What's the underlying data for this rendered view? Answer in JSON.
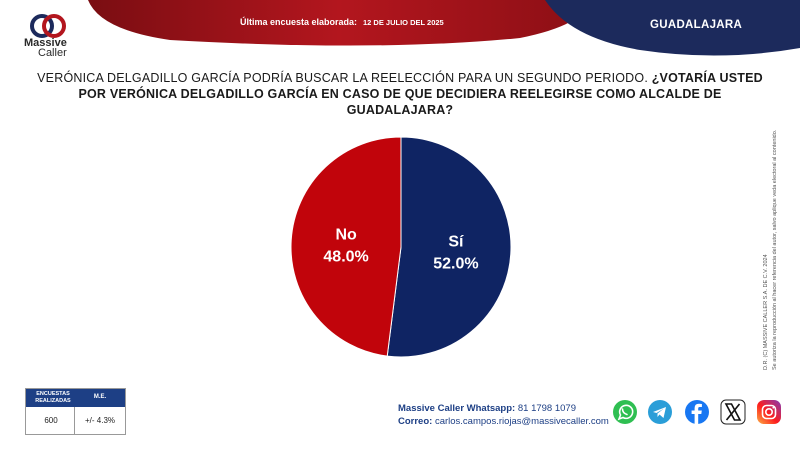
{
  "brand": {
    "name": "Massive",
    "sub": "Caller"
  },
  "header": {
    "date_label": "Última encuesta elaborada:",
    "date_value": "12 DE JULIO DEL 2025",
    "city": "GUADALAJARA",
    "colors": {
      "red": "#b3161e",
      "navy": "#1c2a5c"
    }
  },
  "question": {
    "line_regular": "VERÓNICA DELGADILLO GARCÍA PODRÍA BUSCAR LA REELECCIÓN PARA UN SEGUNDO PERIODO.",
    "line_bold": "¿VOTARÍA USTED POR VERÓNICA DELGADILLO GARCÍA EN CASO DE QUE DECIDIERA REELEGIRSE COMO ALCALDE DE GUADALAJARA?"
  },
  "chart_data": {
    "type": "pie",
    "title": "",
    "slices": [
      {
        "label": "Sí",
        "value": 52.0,
        "display": "52.0%",
        "color": "#0f2463"
      },
      {
        "label": "No",
        "value": 48.0,
        "display": "48.0%",
        "color": "#c1040b"
      }
    ]
  },
  "side_note": {
    "line1": "D.R. (C) MASSIVE CALLER S.A. DE C.V. 2024",
    "line2": "Se autoriza la reproducción al hacer referencia del autor, salvo aplique veda electoral al contenido."
  },
  "stats": {
    "col1_header": "ENCUESTAS REALIZADAS",
    "col2_header": "M.E.",
    "col1_value": "600",
    "col2_value": "+/- 4.3%"
  },
  "contact": {
    "whatsapp_label": "Massive Caller Whatsapp:",
    "whatsapp_value": "81 1798 1079",
    "email_label": "Correo:",
    "email_value": "carlos.campos.riojas@massivecaller.com"
  },
  "social_icons": [
    "whatsapp-icon",
    "telegram-icon",
    "facebook-icon",
    "x-icon",
    "instagram-icon"
  ]
}
